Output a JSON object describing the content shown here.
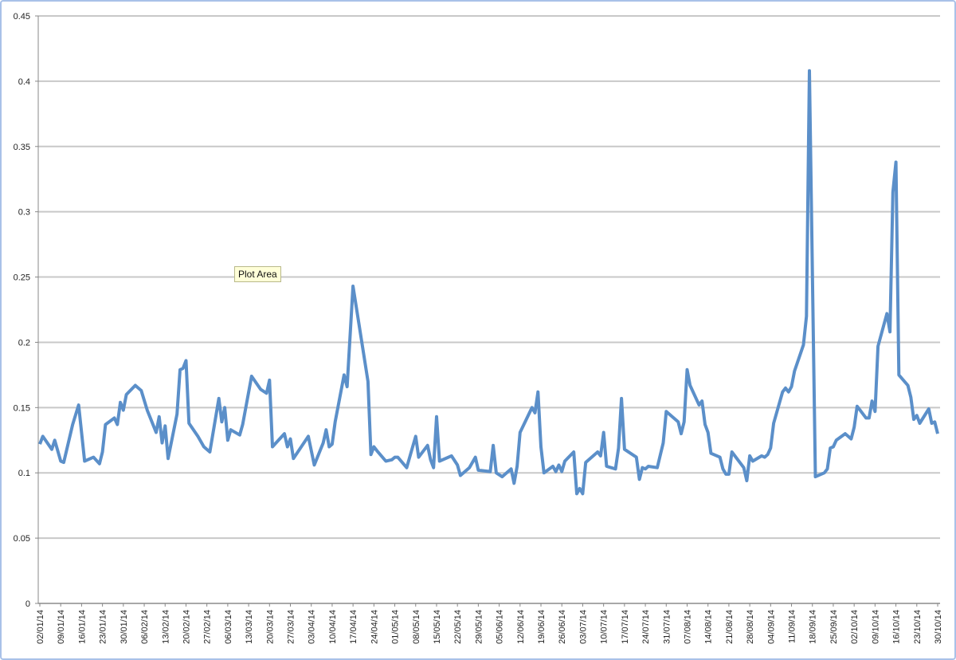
{
  "chart_data": {
    "type": "line",
    "tooltip": "Plot Area",
    "color": "#5b8fc9",
    "grid": true,
    "ylim": [
      0,
      0.45
    ],
    "yticks": [
      0,
      0.05,
      0.1,
      0.15,
      0.2,
      0.25,
      0.3,
      0.35,
      0.4,
      0.45
    ],
    "xticks": [
      "02/01/14",
      "09/01/14",
      "16/01/14",
      "23/01/14",
      "30/01/14",
      "06/02/14",
      "13/02/14",
      "20/02/14",
      "27/02/14",
      "06/03/14",
      "13/03/14",
      "20/03/14",
      "27/03/14",
      "03/04/14",
      "10/04/14",
      "17/04/14",
      "24/04/14",
      "01/05/14",
      "08/05/14",
      "15/05/14",
      "22/05/14",
      "29/05/14",
      "05/06/14",
      "12/06/14",
      "19/06/14",
      "26/06/14",
      "03/07/14",
      "10/07/14",
      "17/07/14",
      "24/07/14",
      "31/07/14",
      "07/08/14",
      "14/08/14",
      "21/08/14",
      "28/08/14",
      "04/09/14",
      "11/09/14",
      "18/09/14",
      "25/09/14",
      "02/10/14",
      "09/10/14",
      "16/10/14",
      "23/10/14",
      "30/10/14"
    ],
    "x": [
      "02/01/14",
      "03/01/14",
      "06/01/14",
      "07/01/14",
      "09/01/14",
      "10/01/14",
      "13/01/14",
      "15/01/14",
      "17/01/14",
      "20/01/14",
      "22/01/14",
      "23/01/14",
      "24/01/14",
      "27/01/14",
      "28/01/14",
      "29/01/14",
      "30/01/14",
      "31/01/14",
      "03/02/14",
      "05/02/14",
      "07/02/14",
      "10/02/14",
      "11/02/14",
      "12/02/14",
      "13/02/14",
      "14/02/14",
      "17/02/14",
      "18/02/14",
      "19/02/14",
      "20/02/14",
      "21/02/14",
      "24/02/14",
      "26/02/14",
      "28/02/14",
      "03/03/14",
      "04/03/14",
      "05/03/14",
      "06/03/14",
      "07/03/14",
      "10/03/14",
      "11/03/14",
      "14/03/14",
      "17/03/14",
      "19/03/14",
      "20/03/14",
      "21/03/14",
      "25/03/14",
      "26/03/14",
      "27/03/14",
      "28/03/14",
      "02/04/14",
      "04/04/14",
      "07/04/14",
      "08/04/14",
      "09/04/14",
      "10/04/14",
      "11/04/14",
      "14/04/14",
      "15/04/14",
      "17/04/14",
      "22/04/14",
      "23/04/14",
      "24/04/14",
      "25/04/14",
      "28/04/14",
      "30/04/14",
      "01/05/14",
      "02/05/14",
      "05/05/14",
      "07/05/14",
      "08/05/14",
      "09/05/14",
      "12/05/14",
      "13/05/14",
      "14/05/14",
      "15/05/14",
      "16/05/14",
      "20/05/14",
      "22/05/14",
      "23/05/14",
      "26/05/14",
      "28/05/14",
      "29/05/14",
      "02/06/14",
      "03/06/14",
      "04/06/14",
      "06/06/14",
      "09/06/14",
      "10/06/14",
      "11/06/14",
      "12/06/14",
      "16/06/14",
      "17/06/14",
      "18/06/14",
      "19/06/14",
      "20/06/14",
      "23/06/14",
      "24/06/14",
      "25/06/14",
      "26/06/14",
      "27/06/14",
      "30/06/14",
      "01/07/14",
      "02/07/14",
      "03/07/14",
      "04/07/14",
      "08/07/14",
      "09/07/14",
      "10/07/14",
      "11/07/14",
      "14/07/14",
      "15/07/14",
      "16/07/14",
      "17/07/14",
      "21/07/14",
      "22/07/14",
      "23/07/14",
      "24/07/14",
      "25/07/14",
      "28/07/14",
      "30/07/14",
      "31/07/14",
      "04/08/14",
      "05/08/14",
      "06/08/14",
      "07/08/14",
      "08/08/14",
      "11/08/14",
      "12/08/14",
      "13/08/14",
      "14/08/14",
      "15/08/14",
      "18/08/14",
      "19/08/14",
      "20/08/14",
      "21/08/14",
      "22/08/14",
      "26/08/14",
      "27/08/14",
      "28/08/14",
      "29/08/14",
      "01/09/14",
      "02/09/14",
      "03/09/14",
      "04/09/14",
      "05/09/14",
      "08/09/14",
      "09/09/14",
      "10/09/14",
      "11/09/14",
      "12/09/14",
      "15/09/14",
      "16/09/14",
      "17/09/14",
      "19/09/14",
      "22/09/14",
      "23/09/14",
      "24/09/14",
      "25/09/14",
      "26/09/14",
      "29/09/14",
      "30/09/14",
      "01/10/14",
      "02/10/14",
      "03/10/14",
      "06/10/14",
      "07/10/14",
      "08/10/14",
      "09/10/14",
      "10/10/14",
      "13/10/14",
      "14/10/14",
      "15/10/14",
      "16/10/14",
      "17/10/14",
      "20/10/14",
      "21/10/14",
      "22/10/14",
      "23/10/14",
      "24/10/14",
      "27/10/14",
      "28/10/14",
      "29/10/14",
      "30/10/14"
    ],
    "values": [
      0.122,
      0.128,
      0.118,
      0.125,
      0.109,
      0.108,
      0.137,
      0.152,
      0.109,
      0.112,
      0.107,
      0.116,
      0.137,
      0.142,
      0.137,
      0.154,
      0.148,
      0.16,
      0.167,
      0.163,
      0.148,
      0.131,
      0.143,
      0.123,
      0.136,
      0.111,
      0.145,
      0.179,
      0.18,
      0.186,
      0.138,
      0.128,
      0.12,
      0.116,
      0.157,
      0.139,
      0.15,
      0.125,
      0.133,
      0.129,
      0.137,
      0.174,
      0.164,
      0.161,
      0.171,
      0.12,
      0.13,
      0.12,
      0.126,
      0.111,
      0.128,
      0.106,
      0.123,
      0.133,
      0.12,
      0.122,
      0.139,
      0.175,
      0.166,
      0.243,
      0.17,
      0.114,
      0.12,
      0.117,
      0.109,
      0.11,
      0.112,
      0.112,
      0.104,
      0.12,
      0.128,
      0.112,
      0.121,
      0.11,
      0.104,
      0.143,
      0.109,
      0.113,
      0.106,
      0.098,
      0.104,
      0.112,
      0.102,
      0.101,
      0.121,
      0.1,
      0.097,
      0.103,
      0.092,
      0.105,
      0.131,
      0.15,
      0.146,
      0.162,
      0.12,
      0.1,
      0.105,
      0.101,
      0.106,
      0.101,
      0.109,
      0.116,
      0.084,
      0.088,
      0.084,
      0.108,
      0.116,
      0.113,
      0.131,
      0.105,
      0.103,
      0.119,
      0.157,
      0.118,
      0.112,
      0.095,
      0.104,
      0.103,
      0.105,
      0.104,
      0.123,
      0.147,
      0.139,
      0.13,
      0.139,
      0.179,
      0.167,
      0.152,
      0.155,
      0.137,
      0.131,
      0.115,
      0.112,
      0.103,
      0.099,
      0.099,
      0.116,
      0.104,
      0.094,
      0.113,
      0.109,
      0.113,
      0.112,
      0.114,
      0.119,
      0.138,
      0.162,
      0.165,
      0.162,
      0.166,
      0.178,
      0.198,
      0.22,
      0.408,
      0.097,
      0.1,
      0.103,
      0.119,
      0.12,
      0.125,
      0.13,
      0.128,
      0.126,
      0.135,
      0.151,
      0.142,
      0.142,
      0.155,
      0.147,
      0.197,
      0.222,
      0.208,
      0.315,
      0.338,
      0.175,
      0.167,
      0.158,
      0.141,
      0.144,
      0.138,
      0.149,
      0.138,
      0.139,
      0.13
    ]
  }
}
